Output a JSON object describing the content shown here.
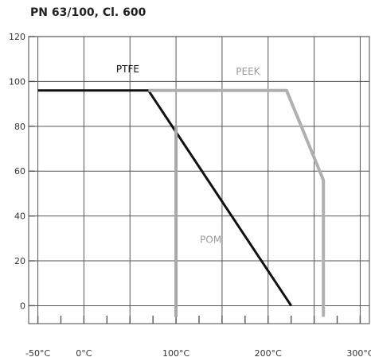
{
  "chart_data": {
    "type": "line",
    "title": "PN 63/100, Cl. 600",
    "xlabel": "",
    "ylabel": "",
    "x_unit": "°C",
    "xlim": [
      -60,
      310
    ],
    "ylim": [
      -8,
      120
    ],
    "x_ticks": [
      -50,
      0,
      100,
      200,
      300
    ],
    "x_tick_labels": [
      "-50°C",
      "0°C",
      "100°C",
      "200°C",
      "300°C"
    ],
    "y_ticks": [
      0,
      20,
      40,
      60,
      80,
      100,
      120
    ],
    "y_tick_labels": [
      "0",
      "20",
      "40",
      "60",
      "80",
      "100",
      "120"
    ],
    "grid": true,
    "series": [
      {
        "name": "PTFE",
        "color": "#111111",
        "x": [
          -50,
          70,
          225
        ],
        "y": [
          96,
          96,
          0
        ]
      },
      {
        "name": "PEEK",
        "color": "#b0b0b0",
        "x": [
          70,
          220,
          260,
          260
        ],
        "y": [
          96,
          96,
          56,
          -5
        ]
      },
      {
        "name": "POM",
        "color": "#a8a8a8",
        "x": [
          100,
          100
        ],
        "y": [
          80,
          -5
        ]
      }
    ]
  }
}
